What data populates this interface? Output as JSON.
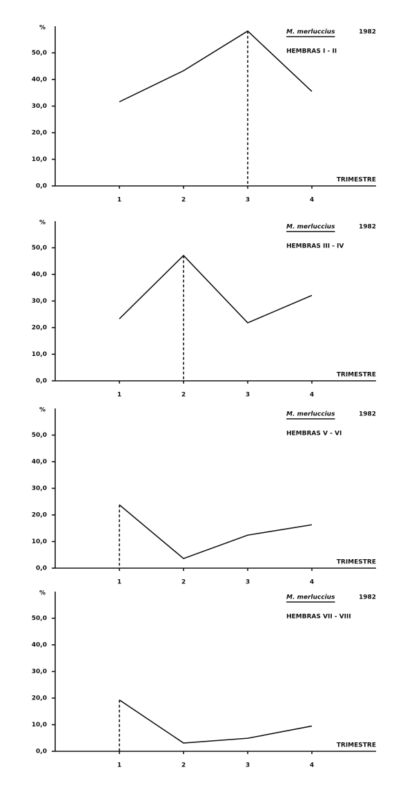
{
  "chart_data": [
    {
      "type": "line",
      "title": "M. merluccius",
      "year": "1982",
      "subtitle": "HEMBRAS I - II",
      "ylabel": "%",
      "xlabel": "TRIMESTRE",
      "x": [
        1,
        2,
        3,
        4
      ],
      "values": [
        31.6,
        43.3,
        58.2,
        35.5
      ],
      "dropline_x": 3,
      "xlim": [
        0,
        5
      ],
      "xticks": [
        1,
        2,
        3,
        4
      ],
      "ylim": [
        0,
        60
      ],
      "yticks": [
        {
          "value": 0,
          "label": "0,0"
        },
        {
          "value": 10,
          "label": "10,0"
        },
        {
          "value": 20,
          "label": "20,0"
        },
        {
          "value": 30,
          "label": "30,0"
        },
        {
          "value": 40,
          "label": "40,0"
        },
        {
          "value": 50,
          "label": "50,0"
        }
      ]
    },
    {
      "type": "line",
      "title": "M. merluccius",
      "year": "1982",
      "subtitle": "HEMBRAS III - IV",
      "ylabel": "%",
      "xlabel": "TRIMESTRE",
      "x": [
        1,
        2,
        3,
        4
      ],
      "values": [
        23.3,
        47.1,
        21.8,
        32.1
      ],
      "dropline_x": 2,
      "xlim": [
        0,
        5
      ],
      "xticks": [
        1,
        2,
        3,
        4
      ],
      "ylim": [
        0,
        60
      ],
      "yticks": [
        {
          "value": 0,
          "label": "0,0"
        },
        {
          "value": 10,
          "label": "10,0"
        },
        {
          "value": 20,
          "label": "20,0"
        },
        {
          "value": 30,
          "label": "30,0"
        },
        {
          "value": 40,
          "label": "40,0"
        },
        {
          "value": 50,
          "label": "50,0"
        }
      ]
    },
    {
      "type": "line",
      "title": "M. merluccius",
      "year": "1982",
      "subtitle": "HEMBRAS V - VI",
      "ylabel": "%",
      "xlabel": "TRIMESTRE",
      "x": [
        1,
        2,
        3,
        4
      ],
      "values": [
        23.8,
        3.6,
        12.4,
        16.3
      ],
      "dropline_x": 1,
      "xlim": [
        0,
        5
      ],
      "xticks": [
        1,
        2,
        3,
        4
      ],
      "ylim": [
        0,
        60
      ],
      "yticks": [
        {
          "value": 0,
          "label": "0,0"
        },
        {
          "value": 10,
          "label": "10,0"
        },
        {
          "value": 20,
          "label": "20,0"
        },
        {
          "value": 30,
          "label": "30,0"
        },
        {
          "value": 40,
          "label": "40,0"
        },
        {
          "value": 50,
          "label": "50,0"
        }
      ]
    },
    {
      "type": "line",
      "title": "M. merluccius",
      "year": "1982",
      "subtitle": "HEMBRAS VII - VIII",
      "ylabel": "%",
      "xlabel": "TRIMESTRE",
      "x": [
        1,
        2,
        3,
        4
      ],
      "values": [
        19.3,
        3.1,
        4.9,
        9.5
      ],
      "dropline_x": 1,
      "xlim": [
        0,
        5
      ],
      "xticks": [
        1,
        2,
        3,
        4
      ],
      "ylim": [
        0,
        60
      ],
      "yticks": [
        {
          "value": 0,
          "label": "0,0"
        },
        {
          "value": 10,
          "label": "10,0"
        },
        {
          "value": 20,
          "label": "20,0"
        },
        {
          "value": 30,
          "label": "30,0"
        },
        {
          "value": 40,
          "label": "40,0"
        },
        {
          "value": 50,
          "label": "50,0"
        }
      ]
    }
  ]
}
